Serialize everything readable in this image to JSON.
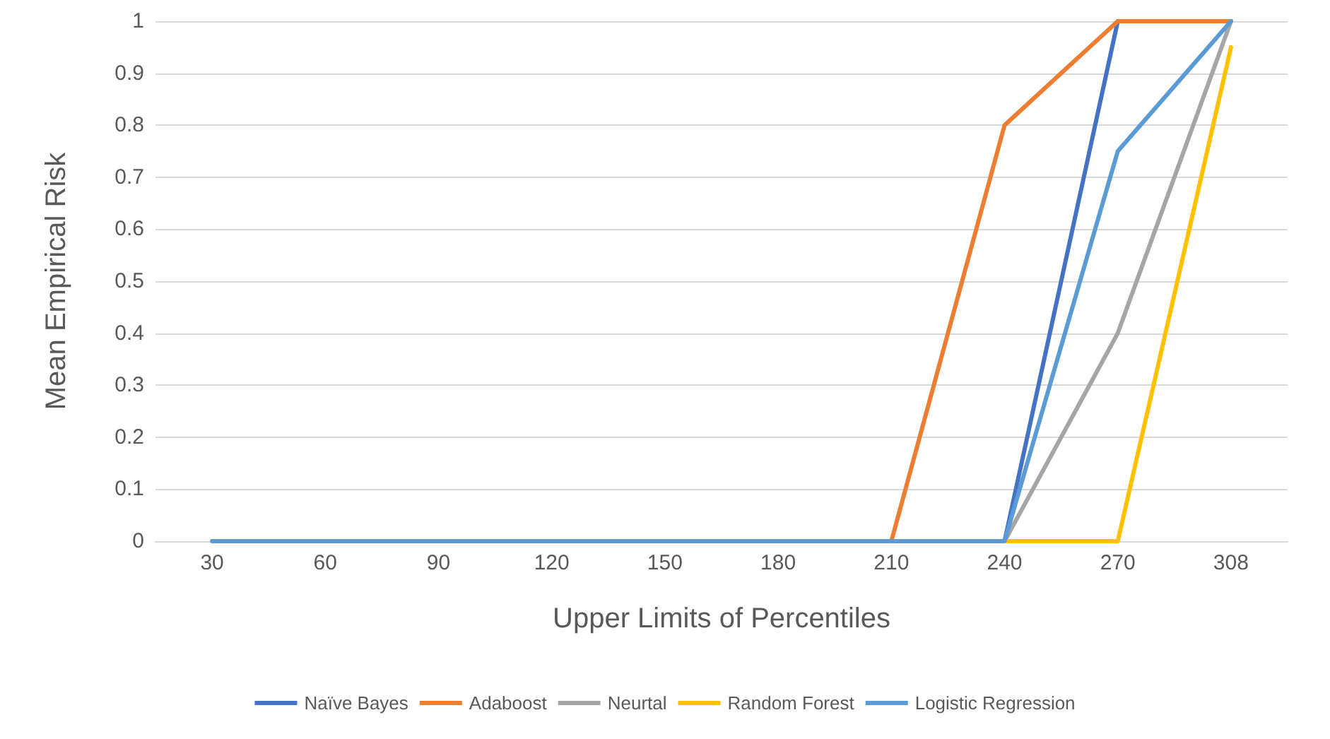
{
  "chart_data": {
    "type": "line",
    "xlabel": "Upper Limits of Percentiles",
    "ylabel": "Mean Empirical Risk",
    "categories": [
      "30",
      "60",
      "90",
      "120",
      "150",
      "180",
      "210",
      "240",
      "270",
      "308"
    ],
    "series": [
      {
        "name": "Naïve Bayes",
        "color": "#4472c4",
        "values": [
          null,
          null,
          null,
          null,
          null,
          null,
          null,
          0,
          1,
          1
        ]
      },
      {
        "name": "Adaboost",
        "color": "#ed7d31",
        "values": [
          null,
          null,
          null,
          null,
          null,
          null,
          0,
          0.8,
          1,
          1
        ]
      },
      {
        "name": "Neurtal",
        "color": "#a5a5a5",
        "values": [
          null,
          null,
          null,
          null,
          null,
          null,
          null,
          0,
          0.4,
          1
        ]
      },
      {
        "name": "Random Forest",
        "color": "#ffc000",
        "values": [
          null,
          null,
          null,
          null,
          null,
          null,
          null,
          0,
          0,
          0.95
        ]
      },
      {
        "name": "Logistic Regression",
        "color": "#5b9bd5",
        "values": [
          0,
          0,
          0,
          0,
          0,
          0,
          0,
          0,
          0.75,
          1
        ]
      }
    ],
    "ylim": [
      0,
      1
    ],
    "yticks": [
      0,
      0.1,
      0.2,
      0.3,
      0.4,
      0.5,
      0.6,
      0.7,
      0.8,
      0.9,
      1
    ],
    "grid": "y",
    "legend": "bottom",
    "marker": "none",
    "line_style": "solid"
  }
}
